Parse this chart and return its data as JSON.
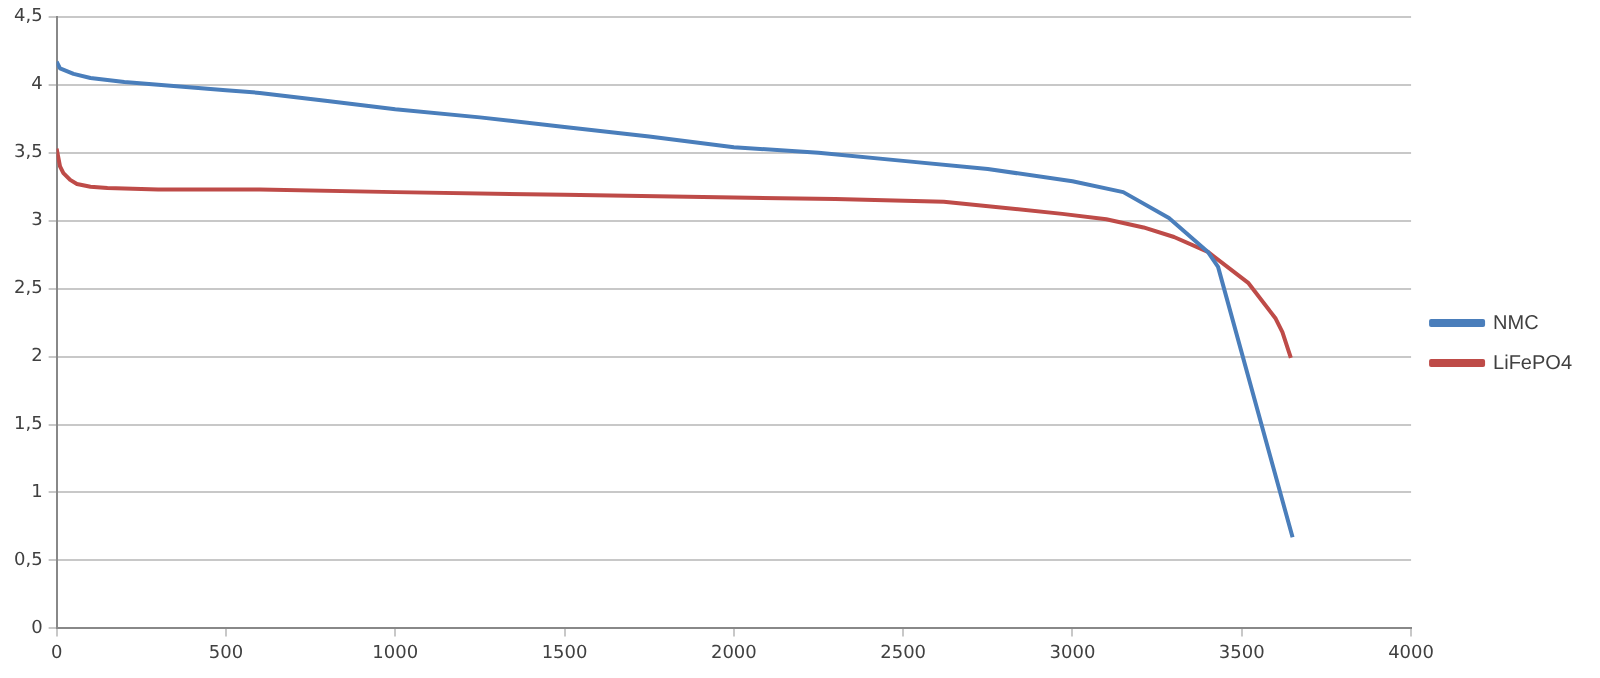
{
  "chart_data": {
    "type": "line",
    "xlim": [
      0,
      4000
    ],
    "xticks": [
      0,
      500,
      1000,
      1500,
      2000,
      2500,
      3000,
      3500,
      4000
    ],
    "ylim": [
      0,
      4.5
    ],
    "yticks": [
      0,
      {
        "value": 0.5,
        "label": "0,5"
      },
      1,
      {
        "value": 1.5,
        "label": "1,5"
      },
      2,
      {
        "value": 2.5,
        "label": "2,5"
      },
      3,
      {
        "value": 3.5,
        "label": "3,5"
      },
      4,
      {
        "value": 4.5,
        "label": "4,5"
      }
    ],
    "grid": "y",
    "legend": "right",
    "marker": "none",
    "line_style": "solid",
    "series": [
      {
        "name": "NMC",
        "color": "#4a7ebb",
        "x": [
          0,
          10,
          50,
          100,
          200,
          300,
          500,
          600,
          800,
          1000,
          1250,
          1500,
          1750,
          2000,
          2250,
          2500,
          2750,
          3000,
          3150,
          3285,
          3400,
          3430,
          3650
        ],
        "values": [
          4.17,
          4.12,
          4.08,
          4.05,
          4.02,
          4.0,
          3.96,
          3.94,
          3.88,
          3.82,
          3.76,
          3.69,
          3.62,
          3.54,
          3.5,
          3.44,
          3.38,
          3.29,
          3.21,
          3.02,
          2.77,
          2.66,
          0.67
        ]
      },
      {
        "name": "LiFePO4",
        "color": "#be4b48",
        "x": [
          0,
          10,
          20,
          40,
          60,
          100,
          150,
          300,
          600,
          1000,
          1500,
          2000,
          2300,
          2620,
          2970,
          3100,
          3210,
          3300,
          3400,
          3520,
          3600,
          3620,
          3645
        ],
        "values": [
          3.53,
          3.4,
          3.35,
          3.3,
          3.27,
          3.25,
          3.24,
          3.23,
          3.23,
          3.21,
          3.19,
          3.17,
          3.16,
          3.14,
          3.05,
          3.01,
          2.95,
          2.88,
          2.77,
          2.54,
          2.28,
          2.18,
          1.99
        ]
      }
    ]
  }
}
